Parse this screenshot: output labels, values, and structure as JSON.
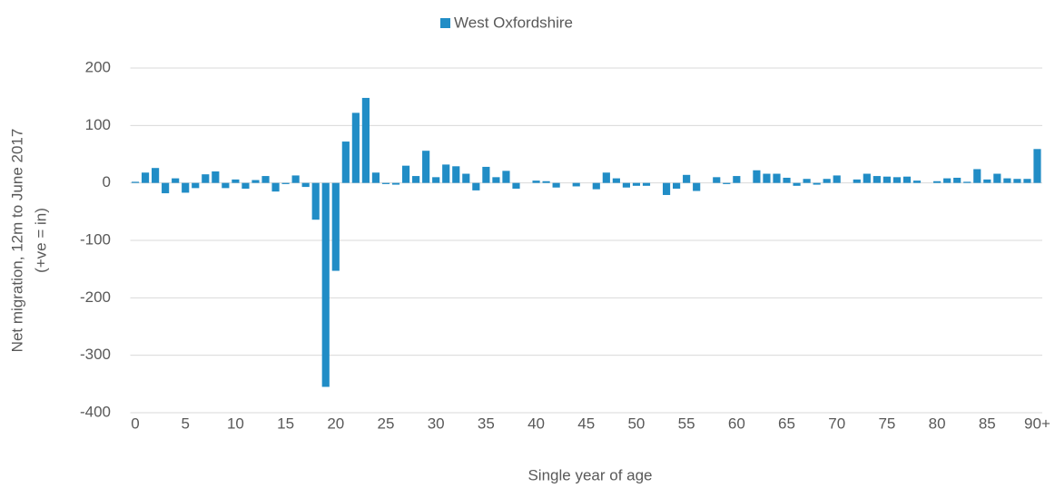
{
  "chart_data": {
    "type": "bar",
    "legend": "top",
    "series": [
      {
        "name": "West Oxfordshire",
        "color": "#218dc6",
        "values": [
          2,
          18,
          26,
          -18,
          8,
          -17,
          -9,
          15,
          20,
          -9,
          6,
          -10,
          5,
          12,
          -15,
          -2,
          13,
          -7,
          -64,
          -355,
          -153,
          72,
          122,
          148,
          18,
          -2,
          -3,
          30,
          12,
          56,
          10,
          32,
          29,
          16,
          -13,
          28,
          10,
          21,
          -10,
          0,
          4,
          3,
          -8,
          0,
          -6,
          0,
          -11,
          18,
          8,
          -8,
          -5,
          -5,
          0,
          -21,
          -10,
          14,
          -14,
          0,
          10,
          -2,
          12,
          0,
          22,
          16,
          16,
          9,
          -5,
          7,
          -3,
          7,
          13,
          0,
          6,
          16,
          12,
          11,
          10,
          11,
          4,
          0,
          3,
          8,
          9,
          2,
          24,
          6,
          16,
          8,
          7,
          7,
          59
        ]
      }
    ],
    "categories": [
      "0",
      null,
      null,
      null,
      null,
      "5",
      null,
      null,
      null,
      null,
      "10",
      null,
      null,
      null,
      null,
      "15",
      null,
      null,
      null,
      null,
      "20",
      null,
      null,
      null,
      null,
      "25",
      null,
      null,
      null,
      null,
      "30",
      null,
      null,
      null,
      null,
      "35",
      null,
      null,
      null,
      null,
      "40",
      null,
      null,
      null,
      null,
      "45",
      null,
      null,
      null,
      null,
      "50",
      null,
      null,
      null,
      null,
      "55",
      null,
      null,
      null,
      null,
      "60",
      null,
      null,
      null,
      null,
      "65",
      null,
      null,
      null,
      null,
      "70",
      null,
      null,
      null,
      null,
      "75",
      null,
      null,
      null,
      null,
      "80",
      null,
      null,
      null,
      null,
      "85",
      null,
      null,
      null,
      null,
      "90+"
    ],
    "x_label": "Single year of age",
    "y_label": [
      "Net migration, 12m to June 2017",
      "(+ve = in)"
    ],
    "ylim": [
      -400,
      200
    ],
    "yticks": [
      -400,
      -300,
      -200,
      -100,
      0,
      100,
      200
    ],
    "grid": true
  }
}
